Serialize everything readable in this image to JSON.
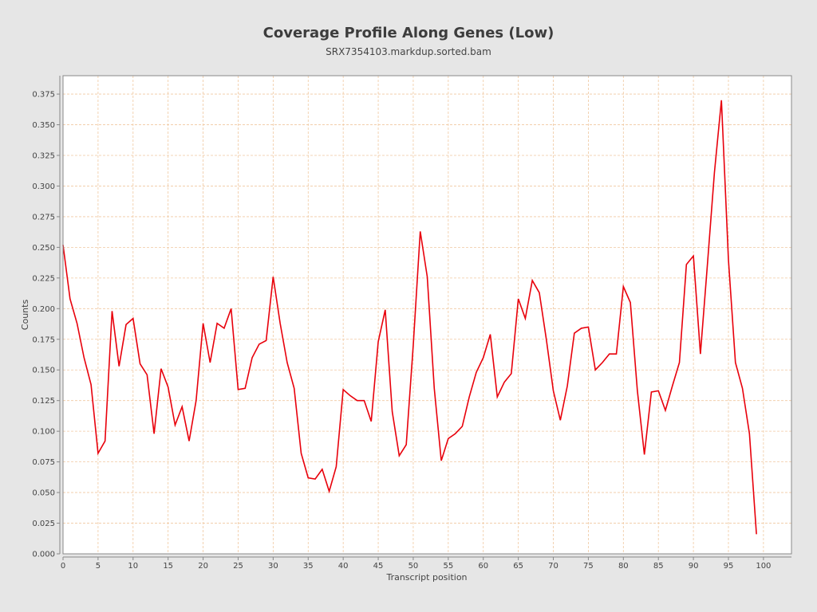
{
  "chart_data": {
    "type": "line",
    "title": "Coverage Profile Along Genes (Low)",
    "subtitle": "SRX7354103.markdup.sorted.bam",
    "xlabel": "Transcript position",
    "ylabel": "Counts",
    "xlim": [
      0,
      104
    ],
    "ylim": [
      0,
      0.39
    ],
    "xticks": [
      0,
      5,
      10,
      15,
      20,
      25,
      30,
      35,
      40,
      45,
      50,
      55,
      60,
      65,
      70,
      75,
      80,
      85,
      90,
      95,
      100
    ],
    "yticks": [
      0.0,
      0.025,
      0.05,
      0.075,
      0.1,
      0.125,
      0.15,
      0.175,
      0.2,
      0.225,
      0.25,
      0.275,
      0.3,
      0.325,
      0.35,
      0.375
    ],
    "ytick_labels": [
      "0.000",
      "0.025",
      "0.050",
      "0.075",
      "0.100",
      "0.125",
      "0.150",
      "0.175",
      "0.200",
      "0.225",
      "0.250",
      "0.275",
      "0.300",
      "0.325",
      "0.350",
      "0.375"
    ],
    "grid": true,
    "colors": {
      "line": "#e8000b",
      "grid": "#f0c8a0",
      "plot_bg": "#ffffff",
      "page_bg": "#e6e6e6"
    },
    "series": [
      {
        "x": [
          0,
          1,
          2,
          3,
          4,
          5,
          6,
          7,
          8,
          9,
          10,
          11,
          12,
          13,
          14,
          15,
          16,
          17,
          18,
          19,
          20,
          21,
          22,
          23,
          24,
          25,
          26,
          27,
          28,
          29,
          30,
          31,
          32,
          33,
          34,
          35,
          36,
          37,
          38,
          39,
          40,
          41,
          42,
          43,
          44,
          45,
          46,
          47,
          48,
          49,
          50,
          51,
          52,
          53,
          54,
          55,
          56,
          57,
          58,
          59,
          60,
          61,
          62,
          63,
          64,
          65,
          66,
          67,
          68,
          69,
          70,
          71,
          72,
          73,
          74,
          75,
          76,
          77,
          78,
          79,
          80,
          81,
          82,
          83,
          84,
          85,
          86,
          87,
          88,
          89,
          90,
          91,
          92,
          93,
          94,
          95,
          96,
          97,
          98,
          99
        ],
        "values": [
          0.252,
          0.208,
          0.188,
          0.16,
          0.138,
          0.082,
          0.092,
          0.198,
          0.153,
          0.187,
          0.192,
          0.155,
          0.146,
          0.098,
          0.151,
          0.136,
          0.105,
          0.12,
          0.092,
          0.125,
          0.188,
          0.156,
          0.188,
          0.184,
          0.2,
          0.134,
          0.135,
          0.16,
          0.171,
          0.174,
          0.226,
          0.188,
          0.156,
          0.135,
          0.082,
          0.062,
          0.061,
          0.069,
          0.051,
          0.071,
          0.134,
          0.129,
          0.125,
          0.125,
          0.108,
          0.173,
          0.199,
          0.116,
          0.08,
          0.089,
          0.17,
          0.263,
          0.226,
          0.135,
          0.076,
          0.094,
          0.098,
          0.104,
          0.128,
          0.148,
          0.16,
          0.179,
          0.128,
          0.14,
          0.147,
          0.208,
          0.192,
          0.223,
          0.213,
          0.175,
          0.133,
          0.109,
          0.137,
          0.18,
          0.184,
          0.185,
          0.15,
          0.156,
          0.163,
          0.163,
          0.218,
          0.205,
          0.133,
          0.081,
          0.132,
          0.133,
          0.117,
          0.137,
          0.156,
          0.236,
          0.243,
          0.163,
          0.236,
          0.311,
          0.37,
          0.24,
          0.156,
          0.135,
          0.098,
          0.016
        ]
      }
    ]
  }
}
